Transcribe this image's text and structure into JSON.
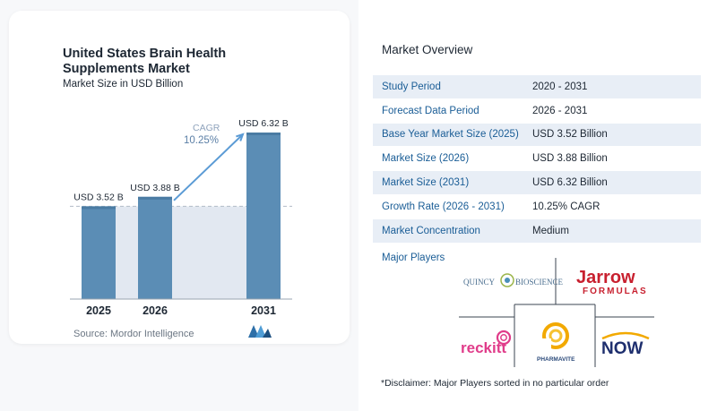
{
  "chart": {
    "title": "United States Brain Health Supplements Market",
    "subtitle": "Market Size in USD Billion",
    "source": "Source: Mordor Intelligence",
    "cagr_label": "CAGR",
    "cagr_value": "10.25%"
  },
  "chart_data": {
    "type": "bar",
    "categories": [
      "2025",
      "2026",
      "2031"
    ],
    "values": [
      3.52,
      3.88,
      6.32
    ],
    "value_labels": [
      "USD 3.52 B",
      "USD 3.88 B",
      "USD 6.32 B"
    ],
    "title": "United States Brain Health Supplements Market",
    "subtitle": "Market Size in USD Billion",
    "xlabel": "",
    "ylabel": "",
    "ylim": [
      0,
      7
    ],
    "grid": false,
    "colors": {
      "bar": "#5b8db5",
      "bar_top": "#4a7ba3",
      "band": "#e2e8f1",
      "arrow": "#5b9bd5"
    }
  },
  "overview": {
    "title": "Market Overview",
    "rows": [
      {
        "label": "Study Period",
        "value": "2020 - 2031"
      },
      {
        "label": "Forecast Data Period",
        "value": "2026 - 2031"
      },
      {
        "label": "Base Year Market Size (2025)",
        "value": "USD 3.52 Billion"
      },
      {
        "label": "Market Size (2026)",
        "value": "USD 3.88 Billion"
      },
      {
        "label": "Market Size (2031)",
        "value": "USD 6.32 Billion"
      },
      {
        "label": "Growth Rate (2026 - 2031)",
        "value": "10.25% CAGR"
      },
      {
        "label": "Market Concentration",
        "value": "Medium"
      }
    ]
  },
  "players": {
    "title": "Major Players",
    "logos": {
      "quincy_a": "QUINCY",
      "quincy_b": "BIOSCIENCE",
      "jarrow_a": "Jarrow",
      "jarrow_b": "FORMULAS",
      "reckitt": "reckitt",
      "pharmavite": "PHARMAVITE",
      "now": "NOW"
    }
  },
  "disclaimer": "*Disclaimer: Major Players sorted in no particular order"
}
